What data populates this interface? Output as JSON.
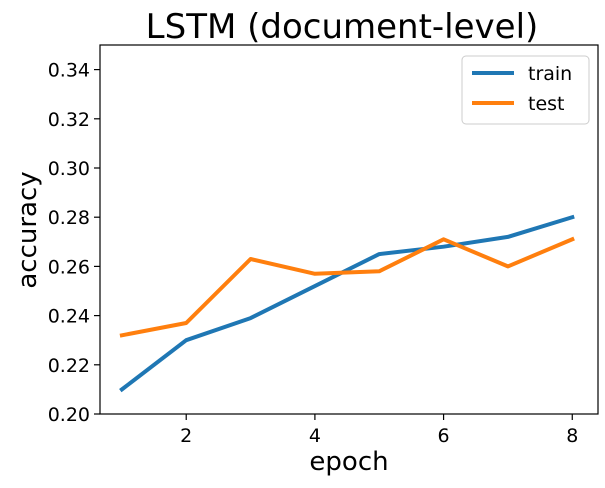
{
  "chart_data": {
    "type": "line",
    "title": "LSTM (document-level)",
    "xlabel": "epoch",
    "ylabel": "accuracy",
    "x": [
      1,
      2,
      3,
      4,
      5,
      6,
      7,
      8
    ],
    "xlim": [
      0.66,
      8.4
    ],
    "ylim": [
      0.2,
      0.35
    ],
    "xticks": [
      2,
      4,
      6,
      8
    ],
    "yticks": [
      0.2,
      0.22,
      0.24,
      0.26,
      0.28,
      0.3,
      0.32,
      0.34
    ],
    "xtick_labels": [
      "2",
      "4",
      "6",
      "8"
    ],
    "ytick_labels": [
      "0.20",
      "0.22",
      "0.24",
      "0.26",
      "0.28",
      "0.30",
      "0.32",
      "0.34"
    ],
    "grid": false,
    "legend_position": "top-right",
    "series": [
      {
        "name": "train",
        "color": "#1f77b4",
        "values": [
          0.21,
          0.23,
          0.239,
          0.252,
          0.265,
          0.268,
          0.272,
          0.28
        ]
      },
      {
        "name": "test",
        "color": "#ff7f0e",
        "values": [
          0.232,
          0.237,
          0.263,
          0.257,
          0.258,
          0.271,
          0.26,
          0.271
        ]
      }
    ]
  }
}
